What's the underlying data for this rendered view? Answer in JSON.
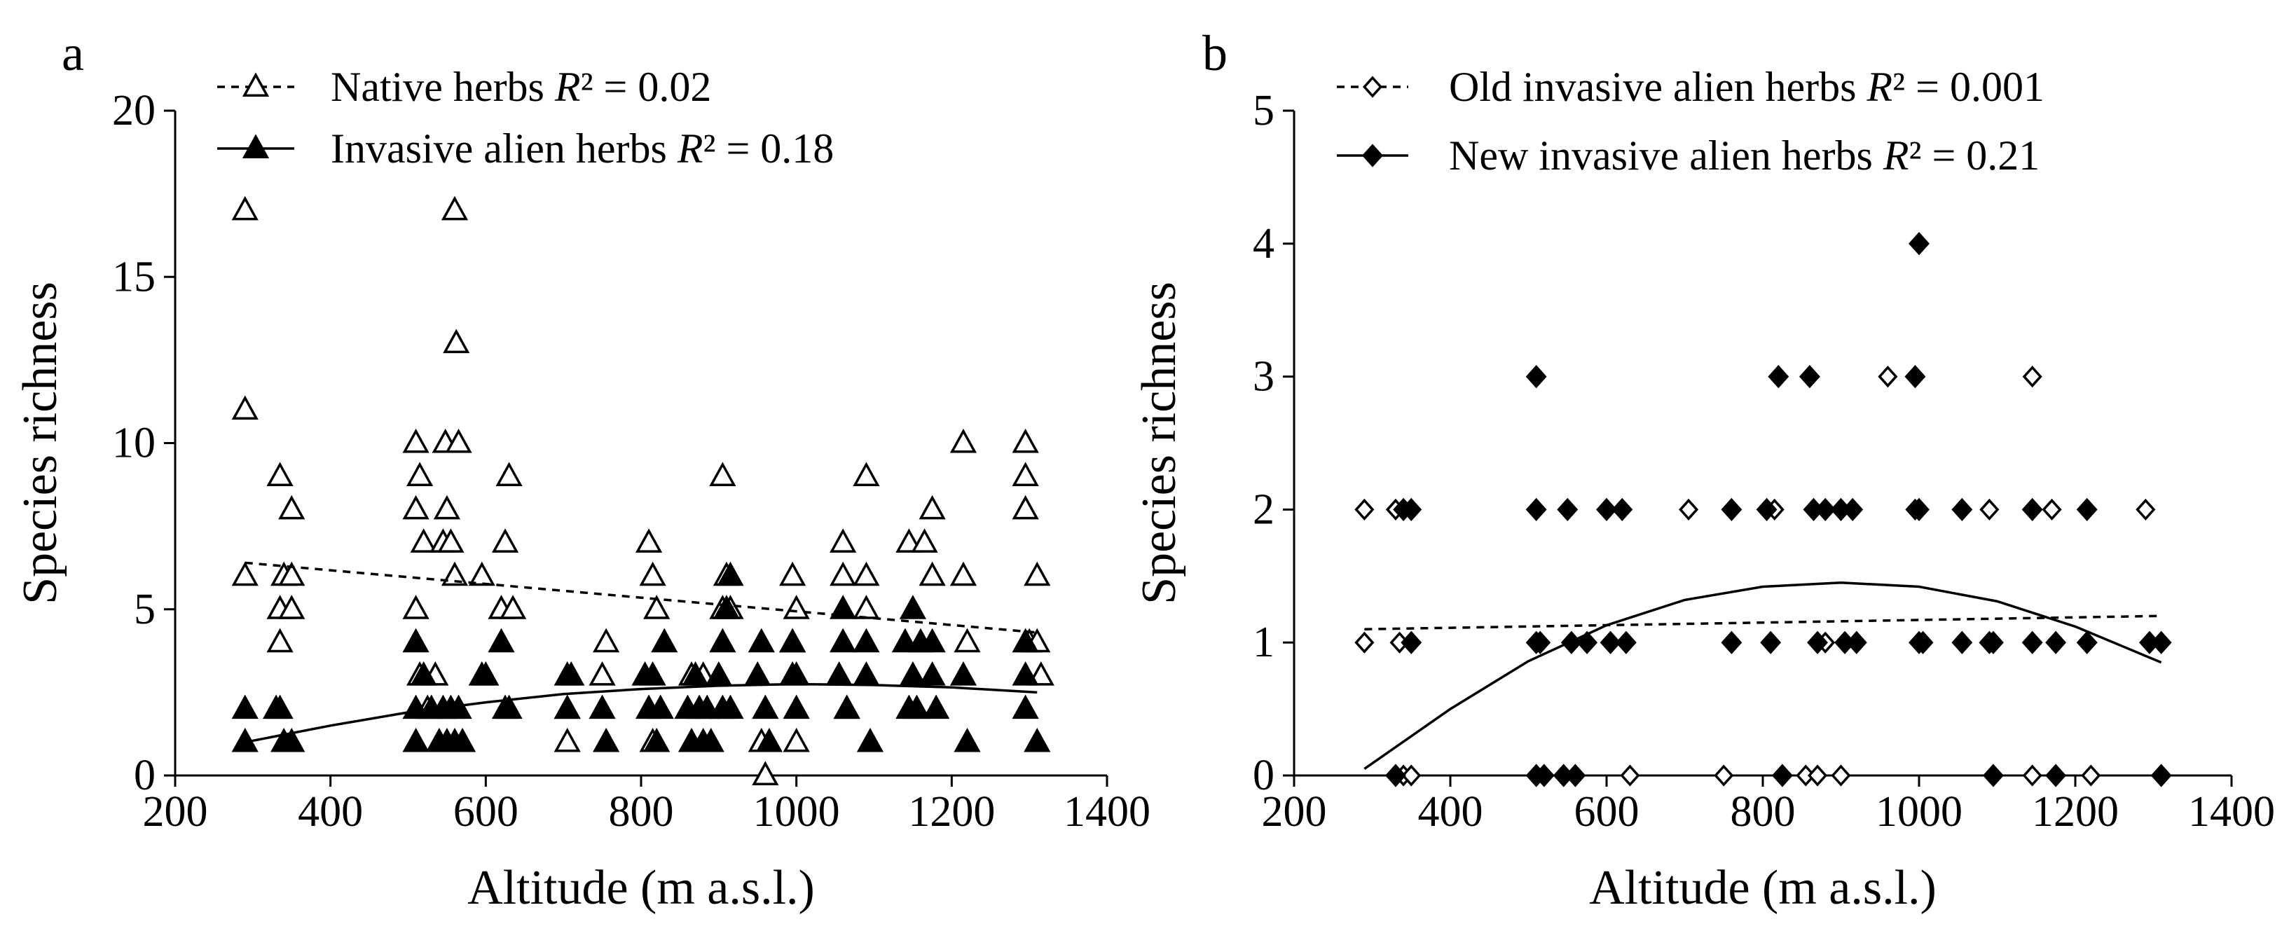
{
  "chart_data": [
    {
      "panel": "a",
      "type": "scatter",
      "xlabel": "Altitude (m a.s.l.)",
      "ylabel": "Species richness",
      "xlim": [
        200,
        1400
      ],
      "ylim": [
        0,
        20
      ],
      "xticks": [
        200,
        400,
        600,
        800,
        1000,
        1200,
        1400
      ],
      "yticks": [
        0,
        5,
        10,
        15,
        20
      ],
      "grid": false,
      "legend_position": "top-left",
      "series": [
        {
          "name": "Native herbs",
          "r2_label": "R² = 0.02",
          "marker": "open-triangle",
          "line_style": "dashed",
          "trend": [
            [
              290,
              6.4
            ],
            [
              1310,
              4.3
            ]
          ],
          "points": [
            [
              290,
              17
            ],
            [
              290,
              11
            ],
            [
              290,
              6
            ],
            [
              335,
              9
            ],
            [
              335,
              5
            ],
            [
              335,
              4
            ],
            [
              340,
              6
            ],
            [
              350,
              8
            ],
            [
              350,
              6
            ],
            [
              350,
              5
            ],
            [
              510,
              10
            ],
            [
              510,
              8
            ],
            [
              510,
              5
            ],
            [
              515,
              9
            ],
            [
              515,
              3
            ],
            [
              520,
              7
            ],
            [
              525,
              2
            ],
            [
              535,
              3
            ],
            [
              545,
              7
            ],
            [
              548,
              10
            ],
            [
              550,
              8
            ],
            [
              555,
              7
            ],
            [
              560,
              17
            ],
            [
              562,
              13
            ],
            [
              565,
              10
            ],
            [
              560,
              6
            ],
            [
              595,
              6
            ],
            [
              620,
              5
            ],
            [
              625,
              7
            ],
            [
              630,
              9
            ],
            [
              635,
              5
            ],
            [
              705,
              2
            ],
            [
              705,
              1
            ],
            [
              750,
              3
            ],
            [
              755,
              4
            ],
            [
              810,
              7
            ],
            [
              815,
              6
            ],
            [
              815,
              1
            ],
            [
              820,
              5
            ],
            [
              865,
              3
            ],
            [
              880,
              3
            ],
            [
              905,
              9
            ],
            [
              905,
              5
            ],
            [
              910,
              6
            ],
            [
              915,
              5
            ],
            [
              955,
              1
            ],
            [
              960,
              0
            ],
            [
              995,
              4
            ],
            [
              995,
              6
            ],
            [
              1000,
              5
            ],
            [
              1000,
              1
            ],
            [
              1060,
              7
            ],
            [
              1060,
              6
            ],
            [
              1065,
              2
            ],
            [
              1090,
              9
            ],
            [
              1090,
              6
            ],
            [
              1090,
              5
            ],
            [
              1145,
              7
            ],
            [
              1165,
              7
            ],
            [
              1175,
              8
            ],
            [
              1175,
              6
            ],
            [
              1215,
              10
            ],
            [
              1215,
              6
            ],
            [
              1220,
              4
            ],
            [
              1295,
              10
            ],
            [
              1295,
              9
            ],
            [
              1295,
              8
            ],
            [
              1300,
              4
            ],
            [
              1310,
              6
            ],
            [
              1310,
              4
            ],
            [
              1315,
              3
            ]
          ]
        },
        {
          "name": "Invasive alien herbs",
          "r2_label": "R² = 0.18",
          "marker": "filled-triangle",
          "line_style": "solid",
          "trend": [
            [
              290,
              1.0
            ],
            [
              400,
              1.5
            ],
            [
              500,
              1.9
            ],
            [
              600,
              2.2
            ],
            [
              700,
              2.45
            ],
            [
              800,
              2.6
            ],
            [
              900,
              2.7
            ],
            [
              1000,
              2.75
            ],
            [
              1100,
              2.72
            ],
            [
              1200,
              2.65
            ],
            [
              1310,
              2.5
            ]
          ],
          "points": [
            [
              290,
              2
            ],
            [
              290,
              1
            ],
            [
              330,
              2
            ],
            [
              340,
              1
            ],
            [
              350,
              1
            ],
            [
              335,
              2
            ],
            [
              510,
              4
            ],
            [
              510,
              2
            ],
            [
              510,
              1
            ],
            [
              520,
              3
            ],
            [
              530,
              2
            ],
            [
              540,
              1
            ],
            [
              545,
              2
            ],
            [
              550,
              1
            ],
            [
              555,
              2
            ],
            [
              560,
              1
            ],
            [
              565,
              2
            ],
            [
              570,
              1
            ],
            [
              595,
              3
            ],
            [
              600,
              3
            ],
            [
              620,
              4
            ],
            [
              625,
              2
            ],
            [
              630,
              2
            ],
            [
              705,
              3
            ],
            [
              705,
              2
            ],
            [
              710,
              3
            ],
            [
              750,
              2
            ],
            [
              755,
              1
            ],
            [
              805,
              3
            ],
            [
              810,
              2
            ],
            [
              815,
              3
            ],
            [
              820,
              1
            ],
            [
              825,
              2
            ],
            [
              830,
              4
            ],
            [
              860,
              2
            ],
            [
              865,
              1
            ],
            [
              870,
              3
            ],
            [
              875,
              2
            ],
            [
              880,
              1
            ],
            [
              885,
              2
            ],
            [
              890,
              1
            ],
            [
              900,
              3
            ],
            [
              905,
              4
            ],
            [
              905,
              2
            ],
            [
              910,
              5
            ],
            [
              915,
              6
            ],
            [
              915,
              2
            ],
            [
              950,
              3
            ],
            [
              955,
              4
            ],
            [
              960,
              2
            ],
            [
              965,
              1
            ],
            [
              995,
              4
            ],
            [
              995,
              3
            ],
            [
              1000,
              2
            ],
            [
              1000,
              3
            ],
            [
              1055,
              3
            ],
            [
              1060,
              5
            ],
            [
              1060,
              4
            ],
            [
              1065,
              2
            ],
            [
              1090,
              4
            ],
            [
              1090,
              3
            ],
            [
              1095,
              1
            ],
            [
              1140,
              4
            ],
            [
              1145,
              2
            ],
            [
              1150,
              5
            ],
            [
              1150,
              3
            ],
            [
              1155,
              2
            ],
            [
              1160,
              4
            ],
            [
              1175,
              4
            ],
            [
              1175,
              3
            ],
            [
              1180,
              2
            ],
            [
              1215,
              3
            ],
            [
              1220,
              1
            ],
            [
              1295,
              4
            ],
            [
              1295,
              3
            ],
            [
              1295,
              2
            ],
            [
              1310,
              1
            ]
          ]
        }
      ]
    },
    {
      "panel": "b",
      "type": "scatter",
      "xlabel": "Altitude (m a.s.l.)",
      "ylabel": "Species richness",
      "xlim": [
        200,
        1400
      ],
      "ylim": [
        0,
        5
      ],
      "xticks": [
        200,
        400,
        600,
        800,
        1000,
        1200,
        1400
      ],
      "yticks": [
        0,
        1,
        2,
        3,
        4,
        5
      ],
      "grid": false,
      "legend_position": "top-left",
      "series": [
        {
          "name": "Old invasive alien herbs",
          "r2_label": "R² = 0.001",
          "marker": "open-diamond",
          "line_style": "dashed",
          "trend": [
            [
              290,
              1.1
            ],
            [
              1310,
              1.2
            ]
          ],
          "points": [
            [
              290,
              2
            ],
            [
              290,
              1
            ],
            [
              330,
              2
            ],
            [
              335,
              1
            ],
            [
              340,
              0
            ],
            [
              350,
              0
            ],
            [
              630,
              0
            ],
            [
              705,
              2
            ],
            [
              750,
              0
            ],
            [
              815,
              2
            ],
            [
              855,
              0
            ],
            [
              870,
              0
            ],
            [
              880,
              1
            ],
            [
              900,
              0
            ],
            [
              960,
              3
            ],
            [
              995,
              2
            ],
            [
              1090,
              2
            ],
            [
              1145,
              3
            ],
            [
              1145,
              0
            ],
            [
              1170,
              2
            ],
            [
              1220,
              0
            ],
            [
              1290,
              2
            ]
          ]
        },
        {
          "name": "New invasive alien herbs",
          "r2_label": "R² = 0.21",
          "marker": "filled-diamond",
          "line_style": "solid",
          "trend": [
            [
              290,
              0.05
            ],
            [
              400,
              0.5
            ],
            [
              500,
              0.86
            ],
            [
              600,
              1.13
            ],
            [
              700,
              1.32
            ],
            [
              800,
              1.42
            ],
            [
              900,
              1.45
            ],
            [
              1000,
              1.42
            ],
            [
              1100,
              1.31
            ],
            [
              1200,
              1.12
            ],
            [
              1310,
              0.85
            ]
          ],
          "points": [
            [
              330,
              0
            ],
            [
              340,
              2
            ],
            [
              350,
              1
            ],
            [
              350,
              2
            ],
            [
              510,
              3
            ],
            [
              510,
              2
            ],
            [
              510,
              1
            ],
            [
              510,
              0
            ],
            [
              515,
              1
            ],
            [
              520,
              0
            ],
            [
              545,
              0
            ],
            [
              550,
              2
            ],
            [
              555,
              1
            ],
            [
              560,
              0
            ],
            [
              575,
              1
            ],
            [
              600,
              2
            ],
            [
              605,
              1
            ],
            [
              620,
              2
            ],
            [
              625,
              1
            ],
            [
              760,
              2
            ],
            [
              760,
              1
            ],
            [
              805,
              2
            ],
            [
              810,
              1
            ],
            [
              820,
              3
            ],
            [
              825,
              0
            ],
            [
              860,
              3
            ],
            [
              865,
              2
            ],
            [
              870,
              1
            ],
            [
              880,
              2
            ],
            [
              900,
              2
            ],
            [
              905,
              1
            ],
            [
              915,
              2
            ],
            [
              920,
              1
            ],
            [
              995,
              3
            ],
            [
              1000,
              4
            ],
            [
              1000,
              2
            ],
            [
              1000,
              1
            ],
            [
              1005,
              1
            ],
            [
              1055,
              2
            ],
            [
              1055,
              1
            ],
            [
              1090,
              1
            ],
            [
              1095,
              1
            ],
            [
              1095,
              0
            ],
            [
              1145,
              2
            ],
            [
              1145,
              1
            ],
            [
              1175,
              1
            ],
            [
              1175,
              0
            ],
            [
              1215,
              2
            ],
            [
              1215,
              1
            ],
            [
              1295,
              1
            ],
            [
              1310,
              1
            ],
            [
              1310,
              0
            ]
          ]
        }
      ]
    }
  ]
}
